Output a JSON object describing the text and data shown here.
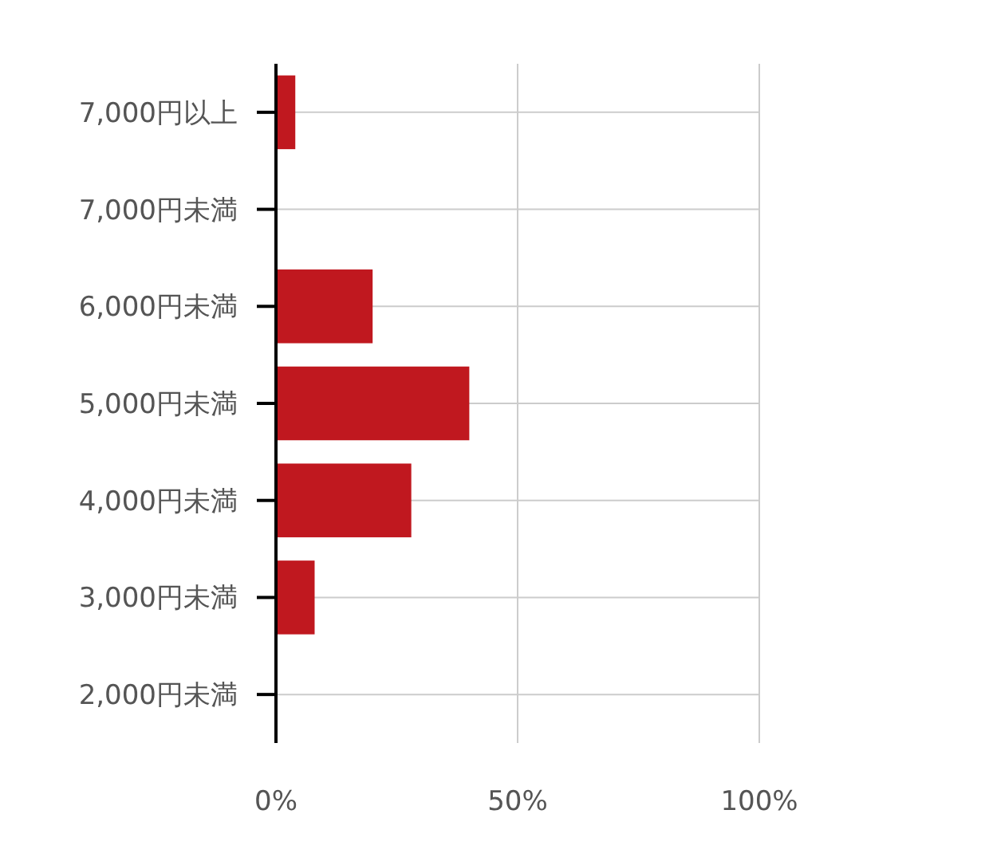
{
  "chart_data": {
    "type": "bar",
    "orientation": "horizontal",
    "categories": [
      "7,000円以上",
      "7,000円未満",
      "6,000円未満",
      "5,000円未満",
      "4,000円未満",
      "3,000円未満",
      "2,000円未満"
    ],
    "values": [
      4,
      0,
      20,
      40,
      28,
      8,
      0
    ],
    "color": "#c0181f",
    "xlim": [
      0,
      100
    ],
    "xticks": [
      {
        "value": 0,
        "label": "0%"
      },
      {
        "value": 50,
        "label": "50%"
      },
      {
        "value": 100,
        "label": "100%"
      }
    ],
    "grid": true
  }
}
